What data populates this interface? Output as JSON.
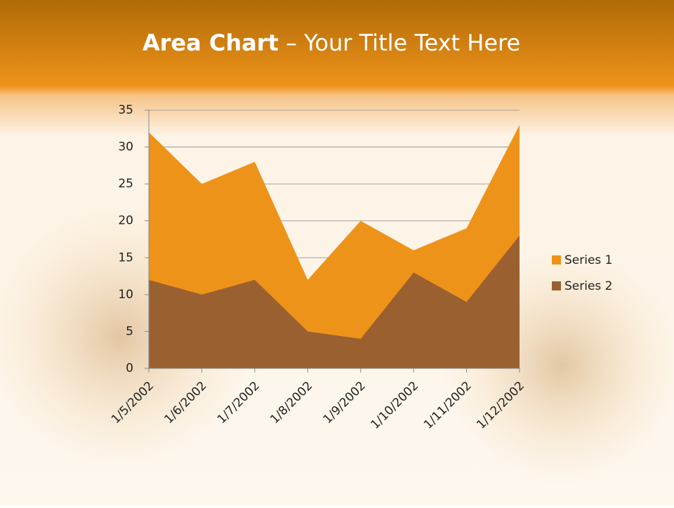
{
  "chart_data": {
    "type": "area",
    "title": "Area Chart",
    "subtitle": "– Your Title Text Here",
    "categories": [
      "1/5/2002",
      "1/6/2002",
      "1/7/2002",
      "1/8/2002",
      "1/9/2002",
      "1/10/2002",
      "1/11/2002",
      "1/12/2002"
    ],
    "series": [
      {
        "name": "Series 1",
        "color": "#ee9319",
        "values": [
          32,
          25,
          28,
          12,
          20,
          16,
          19,
          33
        ]
      },
      {
        "name": "Series 2",
        "color": "#9a6030",
        "values": [
          12,
          10,
          12,
          5,
          4,
          13,
          9,
          18
        ]
      }
    ],
    "ylim": [
      0,
      35
    ],
    "yticks": [
      0,
      5,
      10,
      15,
      20,
      25,
      30,
      35
    ],
    "grid": true,
    "legend": "right"
  }
}
